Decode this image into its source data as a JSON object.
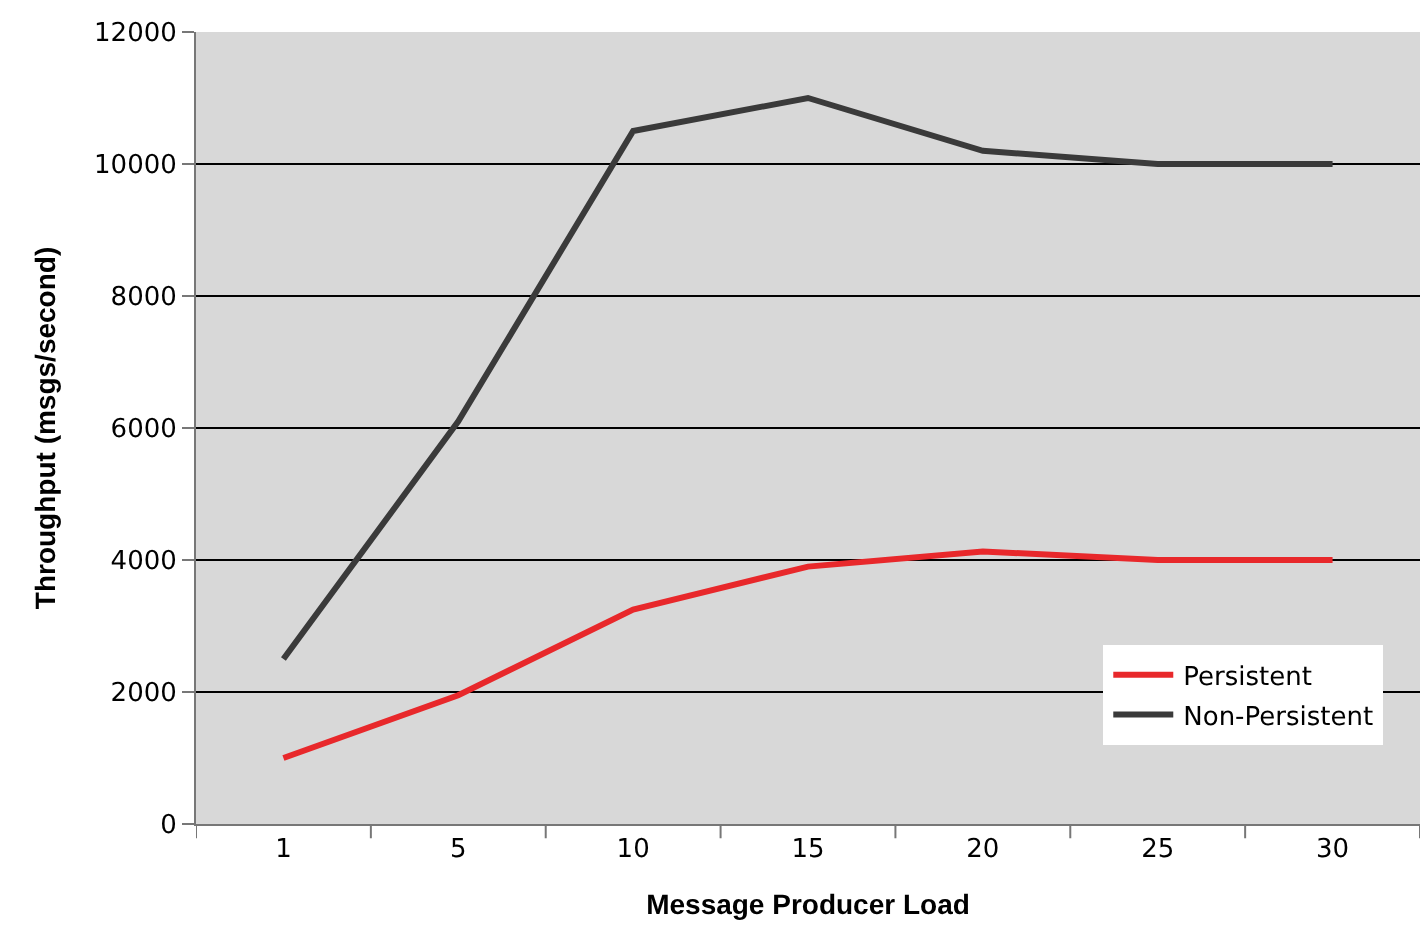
{
  "chart_data": {
    "type": "line",
    "xlabel": "Message Producer Load",
    "ylabel": "Throughput (msgs/second)",
    "categories": [
      "1",
      "5",
      "10",
      "15",
      "20",
      "25",
      "30"
    ],
    "series": [
      {
        "name": "Persistent",
        "color": "#e8282b",
        "values": [
          1000,
          1950,
          3250,
          3900,
          4130,
          4000,
          4000
        ]
      },
      {
        "name": "Non-Persistent",
        "color": "#3a3a3a",
        "values": [
          2500,
          6100,
          10500,
          11000,
          10200,
          10000,
          10000
        ]
      }
    ],
    "ylim": [
      0,
      12000
    ],
    "yticks": [
      0,
      2000,
      4000,
      6000,
      8000,
      10000,
      12000
    ],
    "grid": "y",
    "legend": "bottom right",
    "marker": "none",
    "line_style": "solid"
  }
}
